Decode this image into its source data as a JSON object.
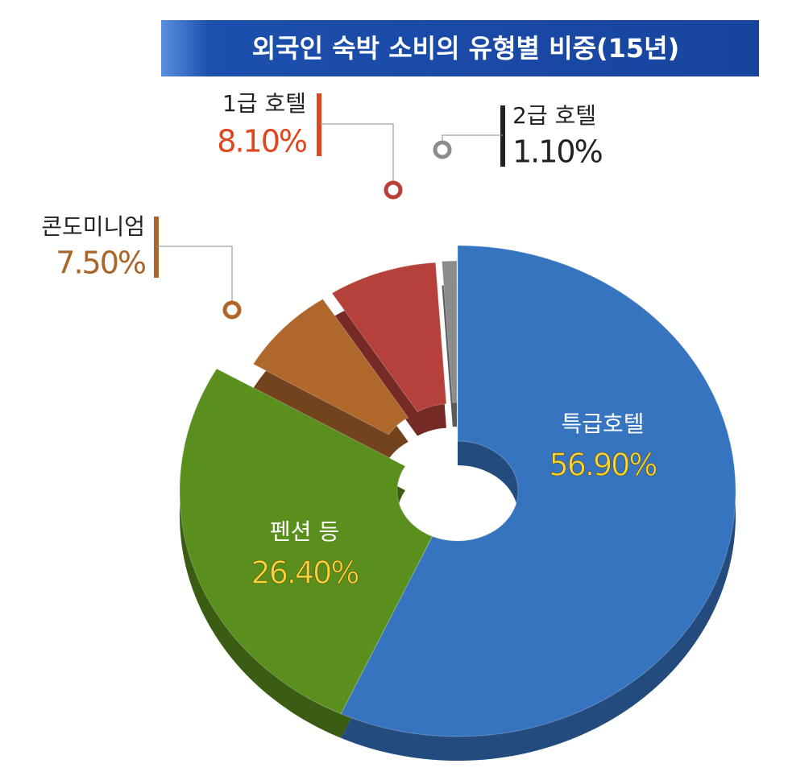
{
  "chart_data": {
    "type": "donut",
    "title": "외국인 숙박 소비의 유형별 비중(15년)",
    "categories": [
      "특급호텔",
      "펜션 등",
      "콘도미니엄",
      "1급 호텔",
      "2급 호텔"
    ],
    "values": [
      56.9,
      26.4,
      7.5,
      8.1,
      1.1
    ],
    "value_labels": [
      "56.90%",
      "26.40%",
      "7.50%",
      "8.10%",
      "1.10%"
    ],
    "colors": [
      "#3674c0",
      "#5a8f1e",
      "#b0672b",
      "#b5413a",
      "#8c8c8c"
    ]
  }
}
